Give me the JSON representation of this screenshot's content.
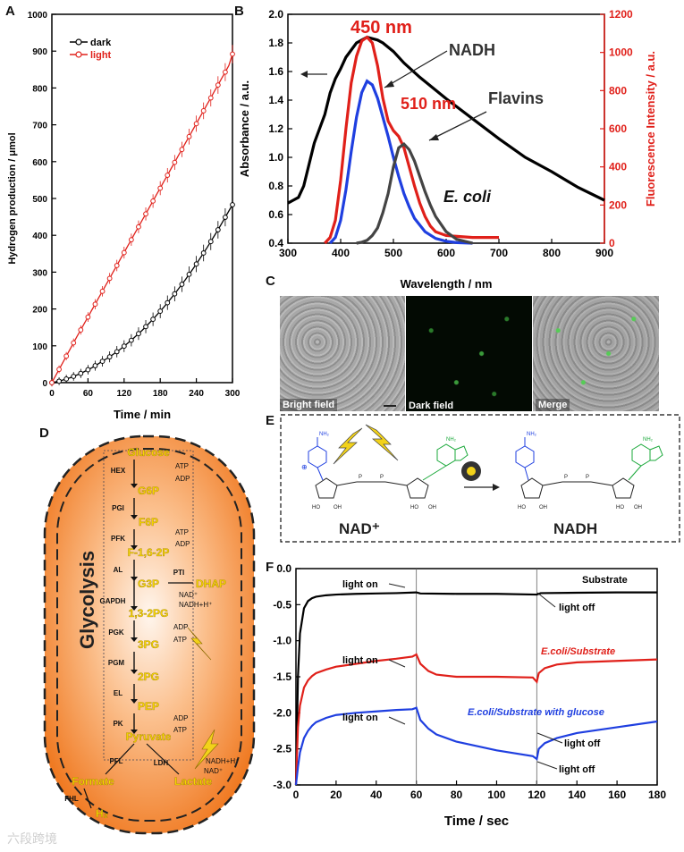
{
  "panels": {
    "A": {
      "letter": "A"
    },
    "B": {
      "letter": "B"
    },
    "C": {
      "letter": "C"
    },
    "D": {
      "letter": "D"
    },
    "E": {
      "letter": "E"
    },
    "F": {
      "letter": "F"
    }
  },
  "chart_data": [
    {
      "panel": "A",
      "type": "line",
      "xlabel": "Time / min",
      "ylabel": "Hydrogen production / μmol",
      "xlim": [
        0,
        300
      ],
      "ylim": [
        0,
        1000
      ],
      "xticks": [
        0,
        60,
        120,
        180,
        240,
        300
      ],
      "yticks": [
        0,
        100,
        200,
        300,
        400,
        500,
        600,
        700,
        800,
        900,
        1000
      ],
      "legend_position": "top-left",
      "grid": false,
      "series": [
        {
          "name": "dark",
          "color": "#000000",
          "x": [
            0,
            6,
            12,
            18,
            24,
            30,
            36,
            42,
            48,
            54,
            60,
            66,
            72,
            78,
            84,
            90,
            96,
            102,
            108,
            114,
            120,
            126,
            132,
            138,
            144,
            150,
            156,
            162,
            168,
            174,
            180,
            186,
            192,
            198,
            204,
            210,
            216,
            222,
            228,
            234,
            240,
            246,
            252,
            258,
            264,
            270,
            276,
            282,
            288,
            294,
            300
          ],
          "y": [
            0,
            2,
            4,
            7,
            10,
            13,
            17,
            21,
            25,
            30,
            35,
            40,
            46,
            52,
            58,
            64,
            70,
            77,
            84,
            91,
            99,
            107,
            115,
            124,
            133,
            142,
            152,
            162,
            172,
            183,
            194,
            205,
            217,
            229,
            241,
            254,
            267,
            280,
            294,
            308,
            322,
            337,
            352,
            367,
            383,
            399,
            415,
            432,
            449,
            466,
            483
          ]
        },
        {
          "name": "light",
          "color": "#e0201a",
          "x": [
            0,
            6,
            12,
            18,
            24,
            30,
            36,
            42,
            48,
            54,
            60,
            66,
            72,
            78,
            84,
            90,
            96,
            102,
            108,
            114,
            120,
            126,
            132,
            138,
            144,
            150,
            156,
            162,
            168,
            174,
            180,
            186,
            192,
            198,
            204,
            210,
            216,
            222,
            228,
            234,
            240,
            246,
            252,
            258,
            264,
            270,
            276,
            282,
            288,
            294,
            300
          ],
          "y": [
            0,
            18,
            36,
            54,
            72,
            90,
            108,
            126,
            143,
            161,
            178,
            196,
            213,
            231,
            248,
            266,
            283,
            301,
            318,
            336,
            353,
            371,
            388,
            406,
            423,
            441,
            458,
            476,
            493,
            511,
            528,
            546,
            563,
            581,
            598,
            616,
            633,
            651,
            668,
            686,
            703,
            721,
            738,
            756,
            773,
            791,
            808,
            826,
            843,
            861,
            892
          ]
        }
      ]
    },
    {
      "panel": "B",
      "type": "line",
      "xlabel": "Wavelength / nm",
      "ylabel": "Absorbance / a.u.",
      "y2label": "Fluorescence Intensity / a.u.",
      "xlim": [
        300,
        900
      ],
      "ylim": [
        0.4,
        2.0
      ],
      "y2lim": [
        0,
        1200
      ],
      "xticks": [
        300,
        400,
        500,
        600,
        700,
        800,
        900
      ],
      "yticks": [
        0.4,
        0.6,
        0.8,
        1.0,
        1.2,
        1.4,
        1.6,
        1.8,
        2.0
      ],
      "y2ticks": [
        0,
        200,
        400,
        600,
        800,
        1000,
        1200
      ],
      "annotations": [
        "450 nm",
        "510 nm",
        "NADH",
        "Flavins",
        "E. coli"
      ],
      "series": [
        {
          "name": "E. coli absorbance",
          "color": "#000000",
          "axis": "left",
          "x": [
            300,
            310,
            320,
            330,
            340,
            350,
            360,
            370,
            380,
            390,
            400,
            410,
            420,
            430,
            440,
            450,
            460,
            470,
            480,
            500,
            520,
            550,
            600,
            650,
            700,
            750,
            800,
            850,
            900
          ],
          "y": [
            0.68,
            0.7,
            0.72,
            0.8,
            0.95,
            1.1,
            1.2,
            1.3,
            1.45,
            1.55,
            1.62,
            1.7,
            1.75,
            1.8,
            1.82,
            1.84,
            1.83,
            1.82,
            1.8,
            1.74,
            1.66,
            1.56,
            1.41,
            1.27,
            1.13,
            1.0,
            0.9,
            0.79,
            0.7
          ]
        },
        {
          "name": "E. coli fluorescence",
          "color": "#e0201a",
          "axis": "right",
          "x": [
            370,
            380,
            390,
            400,
            410,
            420,
            430,
            440,
            450,
            460,
            470,
            480,
            490,
            500,
            510,
            520,
            530,
            540,
            550,
            560,
            570,
            580,
            600,
            650,
            700
          ],
          "y": [
            0,
            30,
            120,
            330,
            600,
            840,
            980,
            1060,
            1080,
            1050,
            930,
            760,
            640,
            590,
            560,
            500,
            400,
            300,
            210,
            140,
            90,
            60,
            40,
            30,
            30
          ]
        },
        {
          "name": "NADH",
          "color": "#1f3fe0",
          "axis": "right",
          "x": [
            380,
            390,
            400,
            410,
            420,
            430,
            440,
            450,
            460,
            470,
            480,
            490,
            500,
            510,
            520,
            530,
            540,
            560,
            580,
            600,
            620,
            650
          ],
          "y": [
            0,
            30,
            120,
            280,
            480,
            660,
            790,
            850,
            830,
            760,
            660,
            560,
            450,
            350,
            260,
            190,
            130,
            60,
            25,
            10,
            3,
            0
          ]
        },
        {
          "name": "Flavins",
          "color": "#444444",
          "axis": "right",
          "x": [
            430,
            440,
            450,
            460,
            470,
            480,
            490,
            500,
            510,
            520,
            530,
            540,
            550,
            560,
            570,
            580,
            600,
            620,
            650
          ],
          "y": [
            0,
            5,
            15,
            40,
            80,
            160,
            260,
            400,
            500,
            520,
            490,
            430,
            350,
            270,
            200,
            140,
            60,
            20,
            0
          ]
        }
      ]
    },
    {
      "panel": "F",
      "type": "line",
      "xlabel": "Time / sec",
      "ylabel": "Current / μA",
      "xlim": [
        0,
        180
      ],
      "ylim": [
        -3.0,
        0.0
      ],
      "xticks": [
        0,
        20,
        40,
        60,
        80,
        100,
        120,
        140,
        160,
        180
      ],
      "yticks": [
        -3.0,
        -2.5,
        -2.0,
        -1.5,
        -1.0,
        -0.5,
        0.0
      ],
      "annotations": [
        "light on",
        "light on",
        "light on",
        "light off",
        "light off",
        "light off",
        "Substrate",
        "E.coli/Substrate",
        "E.coli/Substrate with glucose"
      ],
      "series": [
        {
          "name": "Substrate",
          "color": "#000000",
          "x": [
            0,
            1,
            2,
            4,
            6,
            8,
            10,
            15,
            20,
            30,
            40,
            50,
            60,
            62,
            80,
            100,
            120,
            122,
            140,
            160,
            180
          ],
          "y": [
            -3.0,
            -1.5,
            -0.9,
            -0.55,
            -0.45,
            -0.41,
            -0.39,
            -0.37,
            -0.36,
            -0.35,
            -0.345,
            -0.34,
            -0.33,
            -0.345,
            -0.35,
            -0.35,
            -0.36,
            -0.34,
            -0.335,
            -0.33,
            -0.33
          ]
        },
        {
          "name": "E.coli/Substrate",
          "color": "#e0201a",
          "x": [
            0,
            1,
            2,
            4,
            6,
            8,
            10,
            15,
            20,
            30,
            40,
            50,
            58,
            60,
            62,
            66,
            70,
            80,
            100,
            118,
            120,
            121,
            124,
            130,
            140,
            160,
            180
          ],
          "y": [
            -3.0,
            -2.2,
            -1.9,
            -1.65,
            -1.55,
            -1.49,
            -1.45,
            -1.4,
            -1.36,
            -1.32,
            -1.28,
            -1.25,
            -1.22,
            -1.19,
            -1.32,
            -1.42,
            -1.47,
            -1.5,
            -1.5,
            -1.51,
            -1.57,
            -1.45,
            -1.38,
            -1.33,
            -1.3,
            -1.28,
            -1.26
          ]
        },
        {
          "name": "E.coli/Substrate with glucose",
          "color": "#1f3fe0",
          "x": [
            0,
            1,
            2,
            4,
            6,
            8,
            10,
            15,
            20,
            30,
            40,
            50,
            58,
            60,
            62,
            66,
            70,
            80,
            100,
            118,
            120,
            121,
            124,
            130,
            140,
            160,
            180
          ],
          "y": [
            -3.0,
            -2.75,
            -2.55,
            -2.35,
            -2.25,
            -2.18,
            -2.13,
            -2.07,
            -2.03,
            -2.0,
            -1.98,
            -1.96,
            -1.95,
            -1.93,
            -2.1,
            -2.22,
            -2.3,
            -2.4,
            -2.52,
            -2.6,
            -2.64,
            -2.5,
            -2.42,
            -2.35,
            -2.28,
            -2.2,
            -2.12
          ]
        }
      ]
    }
  ],
  "chart_a": {
    "legend": [
      "dark",
      "light"
    ]
  },
  "chart_b": {
    "peak_450": "450 nm",
    "peak_510": "510 nm",
    "label_nadh": "NADH",
    "label_flavins": "Flavins",
    "label_ecoli": "E. coli",
    "xlabel": "Wavelength / nm",
    "ylabel": "Absorbance / a.u.",
    "y2label": "Fluorescence Intensity / a.u."
  },
  "panel_c": {
    "labels": [
      "Bright field",
      "Dark field",
      "Merge"
    ]
  },
  "panel_d": {
    "title": "Glycolysis",
    "metabolites": [
      "Glucose",
      "G6P",
      "F6P",
      "F-1,6-2P",
      "G3P",
      "DHAP",
      "1,3-2PG",
      "3PG",
      "2PG",
      "PEP",
      "Pyruvate",
      "Formate",
      "Lactate",
      "H₂"
    ],
    "enzymes": [
      "HEX",
      "PGI",
      "PFK",
      "AL",
      "PTI",
      "GAPDH",
      "PGK",
      "PGM",
      "EL",
      "PK",
      "PFL",
      "LDH",
      "FHL"
    ],
    "cofactors": [
      "ATP",
      "ADP",
      "ATP",
      "ADP",
      "NAD⁺",
      "NADH+H⁺",
      "ADP",
      "ATP",
      "ADP",
      "ATP",
      "NADH+H⁺",
      "NAD⁺"
    ]
  },
  "panel_e": {
    "nad_label": "NAD⁺",
    "nadh_label": "NADH",
    "nh2": "NH₂",
    "oh": "OH",
    "oh_sugar": "HO",
    "o": "O",
    "p": "P",
    "n": "N",
    "plus": "⊕"
  },
  "panel_f": {
    "light_on": "light on",
    "light_off": "light off",
    "substrate": "Substrate",
    "ecoli_substrate": "E.coli/Substrate",
    "ecoli_glucose": "E.coli/Substrate with glucose"
  },
  "watermark": "六段跨境"
}
